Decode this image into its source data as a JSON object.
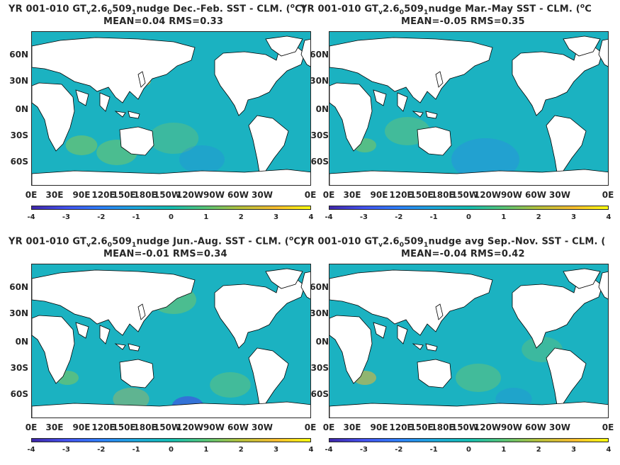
{
  "panels": [
    {
      "title_prefix": "YR 001-010 GT",
      "title_sub_v": "v",
      "title_mid": "2.6",
      "title_sub_0": "0",
      "title_mid2": "509",
      "title_sub_1": "1",
      "title_suffix": "nudge  Dec.-Feb. SST - CLM. (",
      "title_sup": "o",
      "title_end": "C)",
      "stats": "MEAN=0.04   RMS=0.33"
    },
    {
      "title_prefix": "YR 001-010 GT",
      "title_sub_v": "v",
      "title_mid": "2.6",
      "title_sub_0": "0",
      "title_mid2": "509",
      "title_sub_1": "1",
      "title_suffix": "nudge Mar.-May SST - CLM. (",
      "title_sup": "o",
      "title_end": "C",
      "stats": "MEAN=-0.05   RMS=0.35"
    },
    {
      "title_prefix": "YR 001-010 GT",
      "title_sub_v": "v",
      "title_mid": "2.6",
      "title_sub_0": "0",
      "title_mid2": "509",
      "title_sub_1": "1",
      "title_suffix": "nudge Jun.-Aug. SST - CLM. (",
      "title_sup": "o",
      "title_end": "C)",
      "stats": "MEAN=-0.01   RMS=0.34"
    },
    {
      "title_prefix": "YR 001-010 GT",
      "title_sub_v": "v",
      "title_mid": "2.6",
      "title_sub_0": "0",
      "title_mid2": "509",
      "title_sub_1": "1",
      "title_suffix": "nudge avg Sep.-Nov. SST - CLM. (",
      "title_sup": "",
      "title_end": "",
      "stats": "MEAN=-0.04   RMS=0.42"
    }
  ],
  "lat_labels": [
    "60N",
    "30N",
    "0N",
    "30S",
    "60S"
  ],
  "lon_labels": [
    "0E",
    "30E",
    "90E",
    "120E",
    "150E",
    "180E",
    "150W",
    "120W",
    "90W",
    "60W",
    "30W",
    "0E"
  ],
  "colorbar_ticks": [
    "-4",
    "-3",
    "-2",
    "-1",
    "0",
    "1",
    "2",
    "3",
    "4"
  ],
  "colors": {
    "ocean_base": "#1bb2c1",
    "land": "#ffffff",
    "coast": "#000000",
    "warm_anomaly": "#7cc760",
    "hot_anomaly": "#e0b83a",
    "cool_anomaly": "#2c86e6",
    "cold_anomaly": "#3a62dc"
  }
}
